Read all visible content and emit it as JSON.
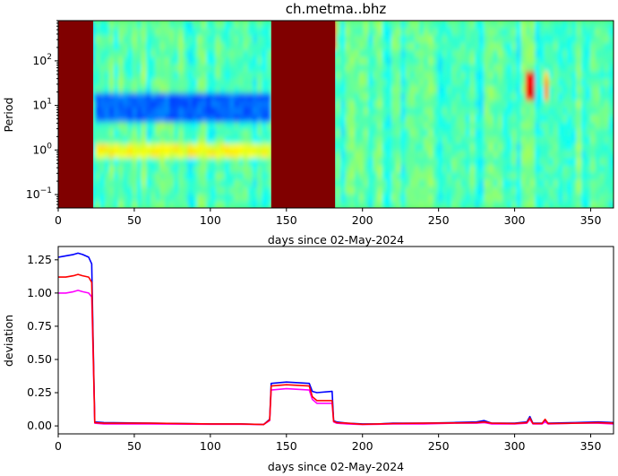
{
  "chart_data": [
    {
      "type": "heatmap",
      "title": "ch.metma..bhz",
      "xlabel": "days since 02-May-2024",
      "ylabel": "Period",
      "xlim": [
        0,
        365
      ],
      "ylim": [
        0.05,
        800
      ],
      "yscale": "log",
      "colormap": "jet",
      "xticks": [
        0,
        50,
        100,
        150,
        200,
        250,
        300,
        350
      ],
      "xtick_labels": [
        "0",
        "50",
        "100",
        "150",
        "200",
        "250",
        "300",
        "350"
      ],
      "yticks": [
        0.1,
        1,
        10,
        100
      ],
      "ytick_exponents": [
        "−1",
        "0",
        "1",
        "2"
      ],
      "ytick_base": "10",
      "saturated_intervals": [
        [
          0,
          23
        ],
        [
          140,
          182
        ]
      ],
      "notes_regions": [
        {
          "x": [
            23,
            140
          ],
          "period": [
            4,
            20
          ],
          "level": 0.22
        },
        {
          "x": [
            23,
            140
          ],
          "period": [
            0.6,
            1.5
          ],
          "level": 0.62
        },
        {
          "x": [
            165,
            182
          ],
          "period": [
            150,
            800
          ],
          "level": 0.85
        },
        {
          "x": [
            308,
            312
          ],
          "period": [
            15,
            60
          ],
          "level": 0.88
        },
        {
          "x": [
            318,
            322
          ],
          "period": [
            15,
            60
          ],
          "level": 0.7
        }
      ]
    },
    {
      "type": "line",
      "xlabel": "days since 02-May-2024",
      "ylabel": "deviation",
      "xlim": [
        0,
        365
      ],
      "ylim": [
        -0.06,
        1.35
      ],
      "xticks": [
        0,
        50,
        100,
        150,
        200,
        250,
        300,
        350
      ],
      "xtick_labels": [
        "0",
        "50",
        "100",
        "150",
        "200",
        "250",
        "300",
        "350"
      ],
      "yticks": [
        0.0,
        0.25,
        0.5,
        0.75,
        1.0,
        1.25
      ],
      "ytick_labels": [
        "0.00",
        "0.25",
        "0.50",
        "0.75",
        "1.00",
        "1.25"
      ],
      "series": [
        {
          "color": "#0000ff",
          "x": [
            0,
            5,
            10,
            13,
            16,
            20,
            22,
            23,
            24,
            30,
            60,
            100,
            120,
            135,
            139,
            140,
            150,
            165,
            167,
            170,
            180,
            181,
            183,
            190,
            200,
            210,
            220,
            240,
            260,
            275,
            280,
            285,
            300,
            308,
            310,
            312,
            318,
            320,
            322,
            340,
            355,
            365
          ],
          "y": [
            1.27,
            1.28,
            1.29,
            1.3,
            1.29,
            1.27,
            1.22,
            0.6,
            0.03,
            0.025,
            0.02,
            0.015,
            0.015,
            0.01,
            0.05,
            0.32,
            0.33,
            0.32,
            0.26,
            0.25,
            0.26,
            0.04,
            0.03,
            0.02,
            0.015,
            0.015,
            0.02,
            0.02,
            0.025,
            0.03,
            0.04,
            0.02,
            0.02,
            0.03,
            0.07,
            0.02,
            0.02,
            0.04,
            0.02,
            0.025,
            0.03,
            0.025
          ]
        },
        {
          "color": "#ff00ff",
          "x": [
            0,
            5,
            10,
            13,
            16,
            20,
            22,
            23,
            24,
            30,
            60,
            100,
            120,
            135,
            139,
            140,
            150,
            165,
            167,
            170,
            180,
            181,
            183,
            190,
            200,
            210,
            220,
            240,
            260,
            275,
            280,
            285,
            300,
            308,
            310,
            312,
            318,
            320,
            322,
            340,
            355,
            365
          ],
          "y": [
            1.0,
            1.0,
            1.01,
            1.02,
            1.01,
            1.0,
            0.97,
            0.5,
            0.02,
            0.015,
            0.015,
            0.012,
            0.012,
            0.01,
            0.04,
            0.27,
            0.28,
            0.27,
            0.2,
            0.17,
            0.17,
            0.03,
            0.02,
            0.015,
            0.01,
            0.012,
            0.015,
            0.015,
            0.02,
            0.02,
            0.025,
            0.015,
            0.015,
            0.02,
            0.05,
            0.015,
            0.015,
            0.03,
            0.015,
            0.02,
            0.02,
            0.015
          ]
        },
        {
          "color": "#ff0000",
          "x": [
            0,
            5,
            10,
            13,
            16,
            20,
            22,
            23,
            24,
            30,
            60,
            100,
            120,
            135,
            139,
            140,
            150,
            165,
            167,
            170,
            180,
            181,
            183,
            190,
            200,
            210,
            220,
            240,
            260,
            275,
            280,
            285,
            300,
            308,
            310,
            312,
            318,
            320,
            322,
            340,
            355,
            365
          ],
          "y": [
            1.12,
            1.12,
            1.13,
            1.14,
            1.13,
            1.12,
            1.08,
            0.55,
            0.025,
            0.02,
            0.02,
            0.015,
            0.015,
            0.01,
            0.045,
            0.3,
            0.31,
            0.3,
            0.22,
            0.19,
            0.19,
            0.035,
            0.025,
            0.02,
            0.012,
            0.015,
            0.018,
            0.02,
            0.022,
            0.025,
            0.03,
            0.02,
            0.018,
            0.025,
            0.06,
            0.018,
            0.018,
            0.05,
            0.018,
            0.02,
            0.025,
            0.02
          ]
        }
      ]
    }
  ]
}
